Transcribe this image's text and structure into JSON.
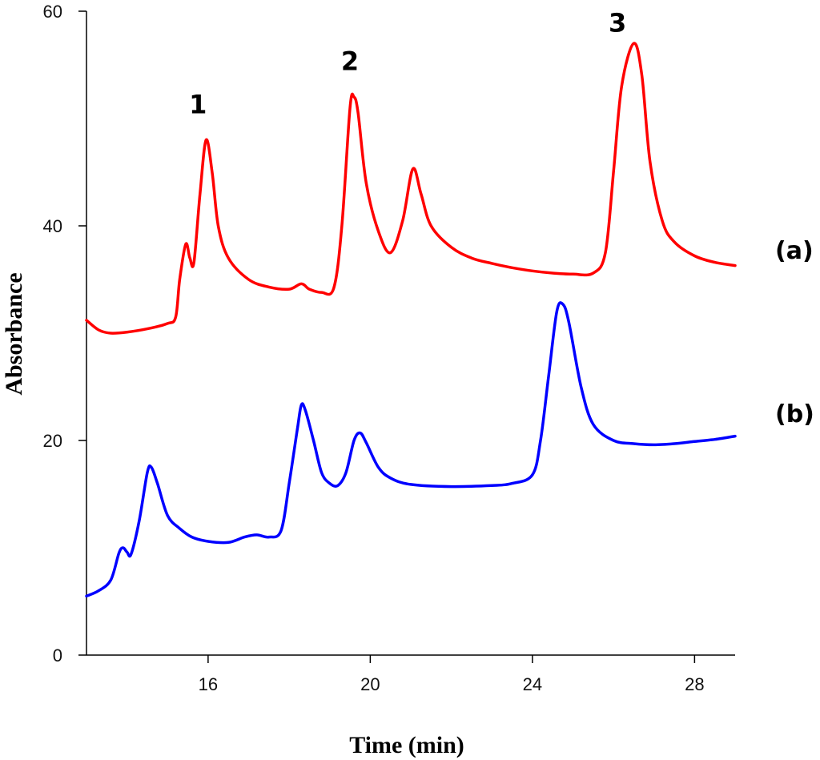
{
  "chart_data": {
    "type": "line",
    "title": "",
    "xlabel": "Time (min)",
    "ylabel": "Absorbance",
    "xlim": [
      13,
      29
    ],
    "ylim": [
      0,
      60
    ],
    "xticks": [
      16,
      20,
      24,
      28
    ],
    "yticks": [
      0,
      20,
      40,
      60
    ],
    "grid": false,
    "legend": "none",
    "series": [
      {
        "name": "(a)",
        "color": "#ff0000",
        "points": [
          [
            13.0,
            31.2
          ],
          [
            13.3,
            30.3
          ],
          [
            13.6,
            30.0
          ],
          [
            14.0,
            30.1
          ],
          [
            14.5,
            30.4
          ],
          [
            15.0,
            30.9
          ],
          [
            15.2,
            31.5
          ],
          [
            15.3,
            35.0
          ],
          [
            15.45,
            38.3
          ],
          [
            15.55,
            37.0
          ],
          [
            15.65,
            36.6
          ],
          [
            15.8,
            43.0
          ],
          [
            15.95,
            48.0
          ],
          [
            16.1,
            45.0
          ],
          [
            16.25,
            40.0
          ],
          [
            16.5,
            37.0
          ],
          [
            17.0,
            35.0
          ],
          [
            17.5,
            34.3
          ],
          [
            18.0,
            34.1
          ],
          [
            18.3,
            34.6
          ],
          [
            18.5,
            34.1
          ],
          [
            18.8,
            33.8
          ],
          [
            19.1,
            34.2
          ],
          [
            19.3,
            40.0
          ],
          [
            19.5,
            51.0
          ],
          [
            19.6,
            52.0
          ],
          [
            19.7,
            50.5
          ],
          [
            19.9,
            44.0
          ],
          [
            20.2,
            39.5
          ],
          [
            20.5,
            37.5
          ],
          [
            20.8,
            40.5
          ],
          [
            21.05,
            45.3
          ],
          [
            21.25,
            43.0
          ],
          [
            21.5,
            40.0
          ],
          [
            22.0,
            38.0
          ],
          [
            22.5,
            37.0
          ],
          [
            23.0,
            36.5
          ],
          [
            23.5,
            36.1
          ],
          [
            24.0,
            35.8
          ],
          [
            24.5,
            35.6
          ],
          [
            25.0,
            35.5
          ],
          [
            25.5,
            35.6
          ],
          [
            25.8,
            37.5
          ],
          [
            26.0,
            45.0
          ],
          [
            26.2,
            53.0
          ],
          [
            26.5,
            57.0
          ],
          [
            26.7,
            54.0
          ],
          [
            26.9,
            46.0
          ],
          [
            27.2,
            40.5
          ],
          [
            27.5,
            38.5
          ],
          [
            28.0,
            37.2
          ],
          [
            28.5,
            36.6
          ],
          [
            29.0,
            36.3
          ]
        ]
      },
      {
        "name": "(b)",
        "color": "#0000ff",
        "points": [
          [
            13.0,
            5.5
          ],
          [
            13.3,
            6.0
          ],
          [
            13.6,
            7.0
          ],
          [
            13.8,
            9.5
          ],
          [
            13.9,
            10.0
          ],
          [
            14.0,
            9.6
          ],
          [
            14.1,
            9.4
          ],
          [
            14.3,
            12.5
          ],
          [
            14.5,
            17.0
          ],
          [
            14.6,
            17.5
          ],
          [
            14.75,
            16.0
          ],
          [
            15.0,
            13.0
          ],
          [
            15.3,
            11.8
          ],
          [
            15.6,
            11.0
          ],
          [
            16.0,
            10.6
          ],
          [
            16.5,
            10.5
          ],
          [
            16.9,
            11.0
          ],
          [
            17.2,
            11.2
          ],
          [
            17.5,
            11.0
          ],
          [
            17.8,
            11.6
          ],
          [
            18.0,
            16.0
          ],
          [
            18.2,
            21.0
          ],
          [
            18.3,
            23.3
          ],
          [
            18.4,
            22.8
          ],
          [
            18.6,
            20.0
          ],
          [
            18.8,
            17.0
          ],
          [
            19.0,
            16.0
          ],
          [
            19.2,
            15.8
          ],
          [
            19.4,
            17.0
          ],
          [
            19.6,
            20.0
          ],
          [
            19.75,
            20.7
          ],
          [
            19.9,
            19.8
          ],
          [
            20.2,
            17.5
          ],
          [
            20.5,
            16.5
          ],
          [
            21.0,
            15.9
          ],
          [
            22.0,
            15.7
          ],
          [
            23.0,
            15.8
          ],
          [
            23.5,
            16.0
          ],
          [
            24.0,
            16.8
          ],
          [
            24.2,
            20.0
          ],
          [
            24.4,
            26.0
          ],
          [
            24.6,
            32.0
          ],
          [
            24.75,
            32.7
          ],
          [
            24.9,
            31.0
          ],
          [
            25.2,
            25.0
          ],
          [
            25.5,
            21.5
          ],
          [
            26.0,
            20.0
          ],
          [
            26.5,
            19.7
          ],
          [
            27.0,
            19.6
          ],
          [
            27.5,
            19.7
          ],
          [
            28.0,
            19.9
          ],
          [
            28.5,
            20.1
          ],
          [
            29.0,
            20.4
          ]
        ]
      }
    ],
    "annotations": [
      {
        "text": "1",
        "x": 15.75,
        "y": 50.5
      },
      {
        "text": "2",
        "x": 19.5,
        "y": 54.5
      },
      {
        "text": "3",
        "x": 26.1,
        "y": 58.1
      }
    ]
  }
}
